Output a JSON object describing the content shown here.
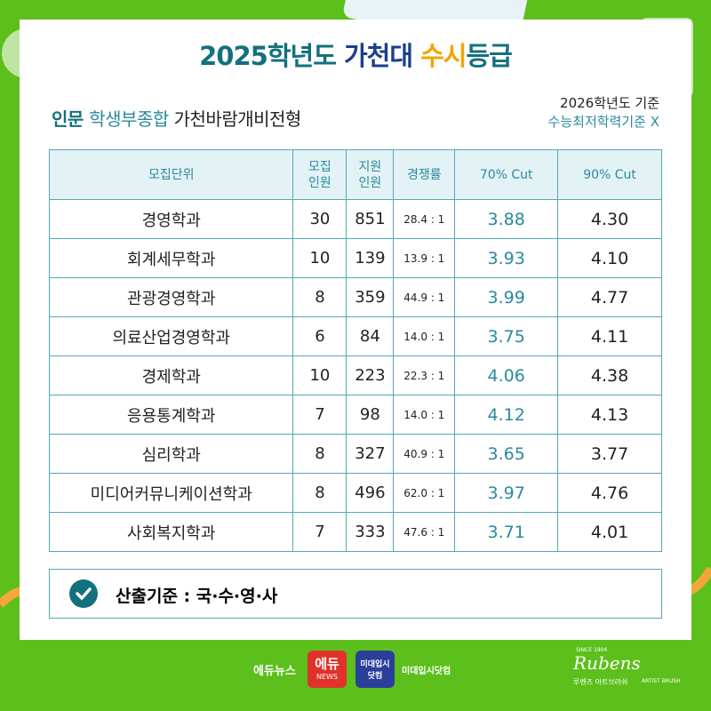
{
  "header": {
    "title_parts": [
      "2025학년도 ",
      "가천대 ",
      "수시",
      "등급"
    ],
    "subtitle_parts": [
      "인문 ",
      "학생부종합 ",
      "가천바람개비전형"
    ],
    "note_lines": [
      "2026학년도 기준",
      "수능최저학력기준 X"
    ]
  },
  "table": {
    "columns": [
      [
        "모집단위"
      ],
      [
        "모집",
        "인원"
      ],
      [
        "지원",
        "인원"
      ],
      [
        "경쟁률"
      ],
      [
        "70% Cut"
      ],
      [
        "90% Cut"
      ]
    ],
    "rows": [
      [
        "경영학과",
        "30",
        "851",
        "28.4 : 1",
        "3.88",
        "4.30"
      ],
      [
        "회계세무학과",
        "10",
        "139",
        "13.9 : 1",
        "3.93",
        "4.10"
      ],
      [
        "관광경영학과",
        "8",
        "359",
        "44.9 : 1",
        "3.99",
        "4.77"
      ],
      [
        "의료산업경영학과",
        "6",
        "84",
        "14.0 : 1",
        "3.75",
        "4.11"
      ],
      [
        "경제학과",
        "10",
        "223",
        "22.3 : 1",
        "4.06",
        "4.38"
      ],
      [
        "응용통계학과",
        "7",
        "98",
        "14.0 : 1",
        "4.12",
        "4.13"
      ],
      [
        "심리학과",
        "8",
        "327",
        "40.9 : 1",
        "3.65",
        "3.77"
      ],
      [
        "미디어커뮤니케이션학과",
        "8",
        "496",
        "62.0 : 1",
        "3.97",
        "4.76"
      ],
      [
        "사회복지학과",
        "7",
        "333",
        "47.6 : 1",
        "3.71",
        "4.01"
      ]
    ]
  },
  "footnote": "산출기준 : 국·수·영·사",
  "footer": {
    "edunews": "에듀뉴스",
    "edu_logo": [
      "에듀",
      "NEWS"
    ],
    "midae_logo": [
      "미대입시",
      "닷컴"
    ],
    "midae": "미대입시닷컴",
    "rubens": {
      "since": "SINCE 1904",
      "brand": "Rubens",
      "korean": "루벤즈 아트브러쉬",
      "tag": "ARTIST BRUSH"
    }
  }
}
